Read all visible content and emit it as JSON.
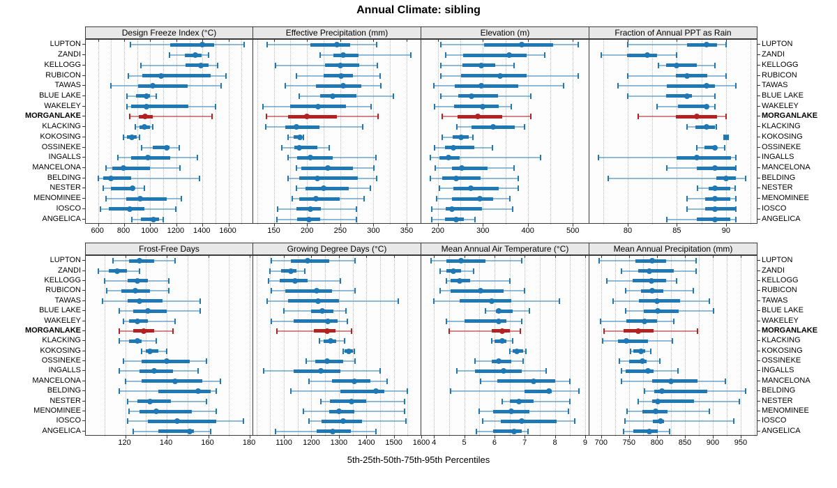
{
  "title": "Annual Climate: sibling",
  "footer": "5th-25th-50th-75th-95th Percentiles",
  "colors": {
    "series": "#1f77b4",
    "series_light": "rgba(31,119,180,0.5)",
    "highlight": "#b22222",
    "highlight_light": "rgba(178,34,34,0.55)",
    "strip_bg": "#e8e8e8",
    "grid": "#bdbdbd",
    "axis": "#333333"
  },
  "highlight_station": "MORGANLAKE",
  "chart_data": {
    "type": "dotplot-intervals",
    "percentiles": [
      5,
      25,
      50,
      75,
      95
    ],
    "legend_note": "thin line = 5th-95th, thick bar = 25th-75th, dot = 50th percentile",
    "stations": [
      "LUPTON",
      "ZANDI",
      "KELLOGG",
      "RUBICON",
      "TAWAS",
      "BLUE LAKE",
      "WAKELEY",
      "MORGANLAKE",
      "KLACKING",
      "KOKOSING",
      "OSSINEKE",
      "INGALLS",
      "MANCELONA",
      "BELDING",
      "NESTER",
      "MENOMINEE",
      "IOSCO",
      "ANGELICA"
    ],
    "panels": [
      {
        "title": "Design Freeze Index (°C)",
        "xlim": [
          505,
          1795
        ],
        "ticks": [
          600,
          800,
          1000,
          1200,
          1400,
          1600
        ],
        "grid_step": 100,
        "values": [
          [
            850,
            1150,
            1400,
            1490,
            1720
          ],
          [
            1145,
            1265,
            1345,
            1395,
            1445
          ],
          [
            930,
            1270,
            1390,
            1445,
            1515
          ],
          [
            830,
            940,
            1085,
            1465,
            1580
          ],
          [
            700,
            905,
            1020,
            1285,
            1545
          ],
          [
            820,
            890,
            970,
            1000,
            1045
          ],
          [
            820,
            855,
            970,
            1290,
            1500
          ],
          [
            840,
            910,
            960,
            1020,
            1475
          ],
          [
            885,
            915,
            955,
            995,
            1020
          ],
          [
            795,
            820,
            860,
            895,
            915
          ],
          [
            935,
            1020,
            1125,
            1145,
            1220
          ],
          [
            750,
            855,
            980,
            1155,
            1360
          ],
          [
            660,
            710,
            795,
            1000,
            1225
          ],
          [
            600,
            640,
            700,
            855,
            1375
          ],
          [
            640,
            700,
            865,
            880,
            955
          ],
          [
            660,
            815,
            925,
            1125,
            1240
          ],
          [
            620,
            680,
            840,
            955,
            1195
          ],
          [
            860,
            930,
            1025,
            1065,
            1100
          ]
        ]
      },
      {
        "title": "Effective Precipitation (mm)",
        "xlim": [
          119,
          372
        ],
        "ticks": [
          150,
          200,
          250,
          300,
          350
        ],
        "grid_step": 25,
        "values": [
          [
            140,
            205,
            245,
            265,
            305
          ],
          [
            220,
            240,
            254,
            278,
            356
          ],
          [
            153,
            227,
            250,
            279,
            306
          ],
          [
            184,
            225,
            251,
            269,
            310
          ],
          [
            167,
            214,
            254,
            282,
            311
          ],
          [
            188,
            220,
            239,
            274,
            330
          ],
          [
            134,
            175,
            217,
            259,
            296
          ],
          [
            139,
            171,
            200,
            245,
            307
          ],
          [
            138,
            167,
            184,
            219,
            284
          ],
          [
            172,
            180,
            189,
            192,
            195
          ],
          [
            162,
            181,
            188,
            216,
            233
          ],
          [
            172,
            185,
            205,
            239,
            304
          ],
          [
            184,
            191,
            231,
            269,
            301
          ],
          [
            171,
            188,
            216,
            277,
            305
          ],
          [
            184,
            198,
            225,
            263,
            295
          ],
          [
            178,
            188,
            214,
            249,
            286
          ],
          [
            156,
            184,
            205,
            221,
            274
          ],
          [
            155,
            185,
            203,
            220,
            274
          ]
        ]
      },
      {
        "title": "Elevation (m)",
        "xlim": [
          163,
          537
        ],
        "ticks": [
          200,
          300,
          400,
          500
        ],
        "grid_step": 50,
        "values": [
          [
            207,
            302,
            387,
            456,
            512
          ],
          [
            217,
            256,
            359,
            397,
            438
          ],
          [
            207,
            254,
            296,
            327,
            370
          ],
          [
            207,
            252,
            339,
            397,
            512
          ],
          [
            191,
            237,
            297,
            379,
            479
          ],
          [
            207,
            246,
            275,
            334,
            407
          ],
          [
            193,
            236,
            299,
            336,
            363
          ],
          [
            210,
            244,
            289,
            343,
            407
          ],
          [
            242,
            275,
            323,
            371,
            393
          ],
          [
            210,
            233,
            252,
            268,
            278
          ],
          [
            192,
            216,
            235,
            281,
            322
          ],
          [
            183,
            203,
            223,
            248,
            429
          ],
          [
            194,
            231,
            253,
            311,
            370
          ],
          [
            183,
            210,
            240,
            295,
            379
          ],
          [
            204,
            235,
            273,
            335,
            379
          ],
          [
            197,
            231,
            294,
            323,
            360
          ],
          [
            186,
            218,
            231,
            298,
            367
          ],
          [
            186,
            216,
            240,
            257,
            283
          ]
        ]
      },
      {
        "title": "Fraction of Annual PPT as Rain",
        "xlim": [
          76.1,
          93.2
        ],
        "ticks": [
          80,
          85,
          90
        ],
        "grid_step": 2.5,
        "values": [
          [
            80,
            86,
            88,
            89.1,
            90
          ],
          [
            77.3,
            79.9,
            82,
            83,
            85
          ],
          [
            83.1,
            83.9,
            85,
            87,
            88.9
          ],
          [
            80,
            84.9,
            86,
            88.1,
            90
          ],
          [
            79,
            84,
            88,
            88.9,
            91
          ],
          [
            80,
            83.9,
            86,
            86.5,
            88.9
          ],
          [
            83,
            85.1,
            88,
            88.2,
            88.9
          ],
          [
            81.1,
            84.9,
            87,
            89.1,
            90
          ],
          [
            86,
            86.9,
            88,
            88.9,
            89
          ],
          [
            89.8,
            89.9,
            90,
            90.1,
            90.2
          ],
          [
            87,
            87.8,
            88.9,
            89,
            89.9
          ],
          [
            77,
            85,
            87,
            90.5,
            91
          ],
          [
            84,
            87,
            88.9,
            90.9,
            91
          ],
          [
            78,
            89,
            90,
            91,
            92
          ],
          [
            87.1,
            88.2,
            88.9,
            90.4,
            90.9
          ],
          [
            86,
            87.9,
            88.9,
            90.4,
            91
          ],
          [
            86,
            87.9,
            88.9,
            90.9,
            91
          ],
          [
            84,
            87,
            88.9,
            90.4,
            91
          ]
        ]
      },
      {
        "title": "Frost-Free Days",
        "xlim": [
          101,
          182
        ],
        "ticks": [
          120,
          140,
          160,
          180
        ],
        "grid_step": 10,
        "values": [
          [
            114,
            122,
            127,
            134,
            144
          ],
          [
            107,
            112,
            116,
            121,
            127
          ],
          [
            110,
            121,
            126,
            131,
            141
          ],
          [
            111,
            118,
            125,
            132,
            141
          ],
          [
            109,
            121,
            127,
            138,
            156
          ],
          [
            117,
            124,
            131,
            140,
            156
          ],
          [
            119,
            122,
            126,
            131,
            144
          ],
          [
            117,
            124,
            129,
            134,
            143
          ],
          [
            117,
            122,
            126,
            128,
            135
          ],
          [
            128,
            130,
            132,
            136,
            140
          ],
          [
            119,
            128,
            140,
            151,
            159
          ],
          [
            117,
            127,
            134,
            143,
            155
          ],
          [
            120,
            128,
            144,
            157,
            166
          ],
          [
            117,
            136,
            155,
            161,
            164
          ],
          [
            121,
            126,
            132,
            142,
            159
          ],
          [
            122,
            127,
            135,
            152,
            164
          ],
          [
            121,
            131,
            145,
            164,
            177
          ],
          [
            124,
            136,
            151,
            153,
            161
          ]
        ]
      },
      {
        "title": "Growing Degree Days (°C)",
        "xlim": [
          988,
          1600
        ],
        "ticks": [
          1100,
          1200,
          1300,
          1400,
          1500,
          1600
        ],
        "grid_step": 50,
        "values": [
          [
            1055,
            1125,
            1185,
            1265,
            1360
          ],
          [
            1050,
            1090,
            1125,
            1145,
            1175
          ],
          [
            1045,
            1085,
            1140,
            1185,
            1305
          ],
          [
            1055,
            1105,
            1220,
            1275,
            1360
          ],
          [
            1040,
            1115,
            1225,
            1300,
            1515
          ],
          [
            1100,
            1200,
            1240,
            1280,
            1325
          ],
          [
            1055,
            1135,
            1260,
            1295,
            1330
          ],
          [
            1075,
            1210,
            1258,
            1288,
            1345
          ],
          [
            1230,
            1245,
            1270,
            1290,
            1320
          ],
          [
            1315,
            1320,
            1335,
            1350,
            1355
          ],
          [
            1180,
            1215,
            1258,
            1315,
            1360
          ],
          [
            1025,
            1135,
            1235,
            1305,
            1450
          ],
          [
            1190,
            1275,
            1355,
            1415,
            1475
          ],
          [
            1125,
            1305,
            1435,
            1465,
            1550
          ],
          [
            1235,
            1267,
            1345,
            1400,
            1540
          ],
          [
            1170,
            1265,
            1300,
            1355,
            1540
          ],
          [
            1190,
            1237,
            1315,
            1385,
            1545
          ],
          [
            1070,
            1220,
            1277,
            1343,
            1435
          ]
        ]
      },
      {
        "title": "Mean Annual Air Temperature (°C)",
        "xlim": [
          3.58,
          9.14
        ],
        "ticks": [
          4,
          5,
          6,
          7,
          8,
          9
        ],
        "grid_step": 0.5,
        "values": [
          [
            3.9,
            4.4,
            4.9,
            5.7,
            6.9
          ],
          [
            4.2,
            4.4,
            4.65,
            4.9,
            5.3
          ],
          [
            4.4,
            4.55,
            4.85,
            5.2,
            6.5
          ],
          [
            4.2,
            4.55,
            5.55,
            6.3,
            7.0
          ],
          [
            4.0,
            4.85,
            5.9,
            6.55,
            8.15
          ],
          [
            5.7,
            6.05,
            6.15,
            6.6,
            7.15
          ],
          [
            4.4,
            5.0,
            6.15,
            6.4,
            6.9
          ],
          [
            4.5,
            5.9,
            6.25,
            6.5,
            6.85
          ],
          [
            5.9,
            6.0,
            6.25,
            6.4,
            6.6
          ],
          [
            6.5,
            6.6,
            6.75,
            6.95,
            7.05
          ],
          [
            5.35,
            5.9,
            6.15,
            6.55,
            6.95
          ],
          [
            4.75,
            5.35,
            6.3,
            6.9,
            7.7
          ],
          [
            5.55,
            6.1,
            7.3,
            8.0,
            8.5
          ],
          [
            4.55,
            7.0,
            7.8,
            7.9,
            8.8
          ],
          [
            6.25,
            6.5,
            6.8,
            7.3,
            8.5
          ],
          [
            5.5,
            5.95,
            6.55,
            7.15,
            8.45
          ],
          [
            5.6,
            6.2,
            6.9,
            8.05,
            8.65
          ],
          [
            5.4,
            5.95,
            6.65,
            6.9,
            7.1
          ]
        ]
      },
      {
        "title": "Mean Annual Precipitation (mm)",
        "xlim": [
          679,
          980
        ],
        "ticks": [
          700,
          750,
          800,
          850,
          900,
          950
        ],
        "grid_step": 25,
        "values": [
          [
            697,
            762,
            792,
            817,
            870
          ],
          [
            737,
            766,
            787,
            830,
            870
          ],
          [
            710,
            757,
            790,
            817,
            835
          ],
          [
            744,
            771,
            792,
            812,
            865
          ],
          [
            722,
            768,
            800,
            842,
            894
          ],
          [
            744,
            777,
            802,
            839,
            901
          ],
          [
            699,
            745,
            778,
            800,
            830
          ],
          [
            705,
            740,
            766,
            794,
            873
          ],
          [
            703,
            730,
            745,
            784,
            828
          ],
          [
            753,
            758,
            772,
            779,
            789
          ],
          [
            733,
            750,
            774,
            782,
            805
          ],
          [
            737,
            744,
            784,
            794,
            838
          ],
          [
            737,
            792,
            825,
            872,
            922
          ],
          [
            778,
            795,
            809,
            890,
            959
          ],
          [
            767,
            792,
            802,
            866,
            947
          ],
          [
            746,
            774,
            798,
            819,
            894
          ],
          [
            743,
            793,
            807,
            813,
            938
          ],
          [
            740,
            758,
            786,
            802,
            823
          ]
        ]
      }
    ]
  }
}
